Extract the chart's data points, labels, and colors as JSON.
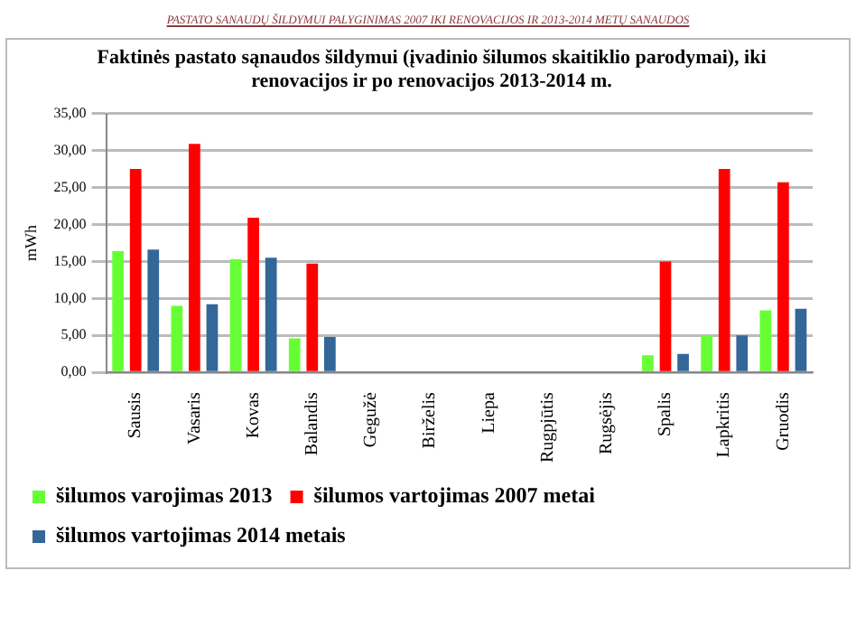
{
  "chart_data": {
    "type": "bar",
    "title": "Faktinės pastato sąnaudos šildymui (įvadinio šilumos skaitiklio parodymai), iki renovacijos ir po renovacijos 2013-2014 m.",
    "annotations": [
      "PASTATO SANAUDŲ ŠILDYMUI PALYGINIMAS 2007 IKI RENOVACIJOS IR 2013-2014 METŲ SANAUDOS"
    ],
    "ylabel": "mWh",
    "categories": [
      "Sausis",
      "Vasaris",
      "Kovas",
      "Balandis",
      "Gegužė",
      "Birželis",
      "Liepa",
      "Rugpjūtis",
      "Rugsėjis",
      "Spalis",
      "Lapkritis",
      "Gruodis"
    ],
    "series": [
      {
        "name": "šilumos varojimas 2013",
        "color": "#66ff33",
        "values": [
          16.4,
          9.0,
          15.3,
          4.6,
          null,
          null,
          null,
          null,
          null,
          2.3,
          4.9,
          8.4
        ]
      },
      {
        "name": "šilumos vartojimas 2007 metai",
        "color": "#ff0000",
        "values": [
          27.5,
          30.9,
          20.9,
          14.7,
          null,
          null,
          null,
          null,
          null,
          15.0,
          27.5,
          25.7
        ]
      },
      {
        "name": "šilumos vartojimas 2014 metais",
        "color": "#336699",
        "values": [
          16.6,
          9.2,
          15.5,
          4.8,
          null,
          null,
          null,
          null,
          null,
          2.5,
          5.0,
          8.6
        ]
      }
    ],
    "ylim": [
      0,
      35
    ],
    "yticks": [
      {
        "value": 0,
        "label": "0,00"
      },
      {
        "value": 5,
        "label": "5,00"
      },
      {
        "value": 10,
        "label": "10,00"
      },
      {
        "value": 15,
        "label": "15,00"
      },
      {
        "value": 20,
        "label": "20,00"
      },
      {
        "value": 25,
        "label": "25,00"
      },
      {
        "value": 30,
        "label": "30,00"
      },
      {
        "value": 35,
        "label": "35,00"
      }
    ],
    "grid": "y",
    "legend": "bottom"
  }
}
